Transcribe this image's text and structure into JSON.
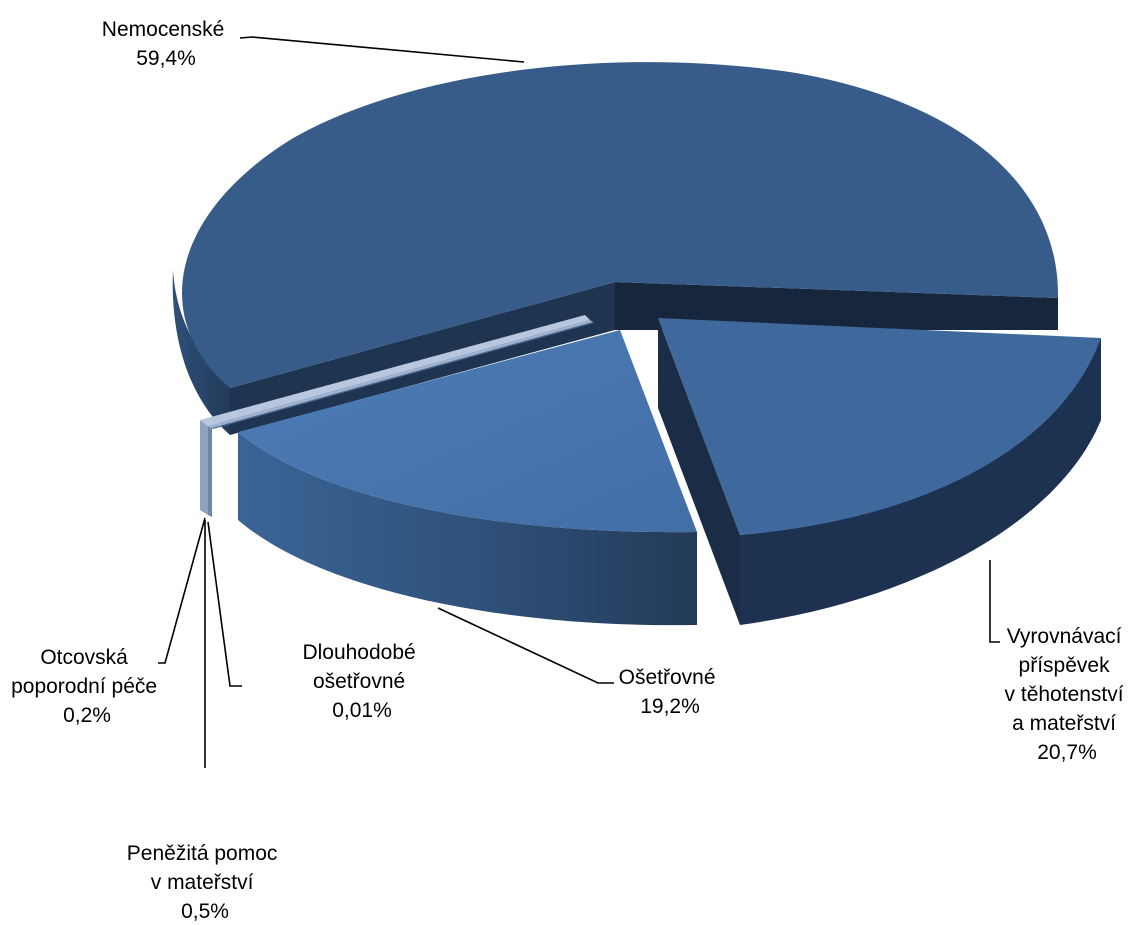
{
  "chart_data": {
    "type": "pie",
    "style": "3d-exploded",
    "title": "",
    "legend": "none",
    "colors": {
      "top_dark": "#375c8a",
      "top_light": "#4a7ab3",
      "side_dark": "#1c2e47",
      "side_mid": "#2c4a70",
      "thin_light": "#b8c7dd",
      "thin_side": "#8fa2c0",
      "leader": "#000000"
    },
    "slices": [
      {
        "key": "nemocenske",
        "lines": [
          "Nemocenské"
        ],
        "value_label": "59,4%",
        "value": 59.4
      },
      {
        "key": "vyrovnavaci",
        "lines": [
          "Vyrovnávací",
          "příspěvek",
          "v těhotenství",
          "a mateřství"
        ],
        "value_label": "20,7%",
        "value": 20.7
      },
      {
        "key": "osetrovne",
        "lines": [
          "Ošetřovné"
        ],
        "value_label": "19,2%",
        "value": 19.2
      },
      {
        "key": "dlouhodobe",
        "lines": [
          "Dlouhodobé",
          "ošetřovné"
        ],
        "value_label": "0,01%",
        "value": 0.01
      },
      {
        "key": "penezita",
        "lines": [
          "Peněžitá pomoc",
          "v mateřství"
        ],
        "value_label": "0,5%",
        "value": 0.5
      },
      {
        "key": "otcovska",
        "lines": [
          "Otcovská",
          "poporodní péče"
        ],
        "value_label": "0,2%",
        "value": 0.2
      }
    ]
  }
}
